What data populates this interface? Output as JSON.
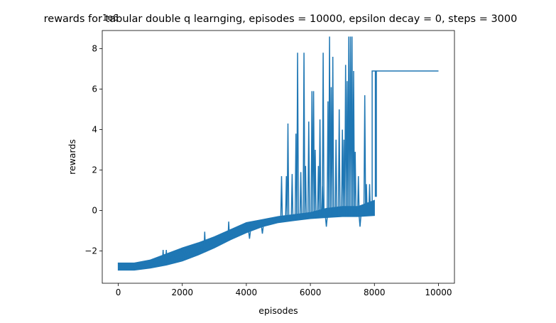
{
  "chart_data": {
    "type": "line",
    "title": "rewards for tabular double q learnging, episodes = 10000, epsilon decay = 0, steps = 3000",
    "xlabel": "episodes",
    "ylabel": "rewards",
    "y_offset_text": "1e6",
    "xlim": [
      -500,
      10500
    ],
    "ylim": [
      -3.6,
      8.9
    ],
    "x_ticks": [
      0,
      2000,
      4000,
      6000,
      8000,
      10000
    ],
    "x_tick_labels": [
      "0",
      "2000",
      "4000",
      "6000",
      "8000",
      "10000"
    ],
    "y_ticks": [
      -2,
      0,
      2,
      4,
      6,
      8
    ],
    "y_tick_labels": [
      "−2",
      "0",
      "2",
      "4",
      "6",
      "8"
    ],
    "grid": false,
    "series": [
      {
        "color": "#1f77b4",
        "band": {
          "x": [
            0,
            500,
            1000,
            1500,
            2000,
            2500,
            3000,
            3500,
            4000,
            4500,
            5000,
            5500,
            6000,
            6500,
            7000,
            7500,
            8000
          ],
          "low": [
            -2.95,
            -2.95,
            -2.85,
            -2.7,
            -2.5,
            -2.2,
            -1.85,
            -1.45,
            -1.1,
            -0.8,
            -0.6,
            -0.5,
            -0.4,
            -0.35,
            -0.3,
            -0.3,
            -0.25
          ],
          "high": [
            -2.6,
            -2.6,
            -2.45,
            -2.15,
            -1.85,
            -1.6,
            -1.3,
            -0.95,
            -0.6,
            -0.45,
            -0.3,
            -0.2,
            -0.1,
            0.1,
            0.2,
            0.2,
            0.5
          ]
        },
        "spikes": [
          {
            "x": 1400,
            "y": -1.95
          },
          {
            "x": 1500,
            "y": -1.95
          },
          {
            "x": 2700,
            "y": -1.05
          },
          {
            "x": 3450,
            "y": -0.55
          },
          {
            "x": 4100,
            "y": -1.4
          },
          {
            "x": 4500,
            "y": -1.15
          },
          {
            "x": 5100,
            "y": 1.7
          },
          {
            "x": 5250,
            "y": 1.7
          },
          {
            "x": 5300,
            "y": 4.3
          },
          {
            "x": 5430,
            "y": 1.8
          },
          {
            "x": 5550,
            "y": 3.8
          },
          {
            "x": 5600,
            "y": 7.8
          },
          {
            "x": 5700,
            "y": 1.9
          },
          {
            "x": 5800,
            "y": 7.8
          },
          {
            "x": 5850,
            "y": 2.2
          },
          {
            "x": 5950,
            "y": 4.4
          },
          {
            "x": 6050,
            "y": 5.9
          },
          {
            "x": 6100,
            "y": 5.9
          },
          {
            "x": 6150,
            "y": 3.0
          },
          {
            "x": 6250,
            "y": 2.2
          },
          {
            "x": 6300,
            "y": 4.5
          },
          {
            "x": 6380,
            "y": 1.2
          },
          {
            "x": 6400,
            "y": 7.8
          },
          {
            "x": 6500,
            "y": -0.8
          },
          {
            "x": 6550,
            "y": 5.4
          },
          {
            "x": 6600,
            "y": 8.6
          },
          {
            "x": 6650,
            "y": 6.1
          },
          {
            "x": 6700,
            "y": 7.6
          },
          {
            "x": 6800,
            "y": 3.5
          },
          {
            "x": 6900,
            "y": 5.0
          },
          {
            "x": 7000,
            "y": 4.0
          },
          {
            "x": 7050,
            "y": 3.5
          },
          {
            "x": 7100,
            "y": 7.2
          },
          {
            "x": 7150,
            "y": 6.4
          },
          {
            "x": 7200,
            "y": 8.6
          },
          {
            "x": 7250,
            "y": 8.6
          },
          {
            "x": 7300,
            "y": 8.6
          },
          {
            "x": 7350,
            "y": 6.9
          },
          {
            "x": 7400,
            "y": 2.9
          },
          {
            "x": 7500,
            "y": 1.7
          },
          {
            "x": 7550,
            "y": -0.8
          },
          {
            "x": 7700,
            "y": 5.7
          },
          {
            "x": 7750,
            "y": 1.3
          },
          {
            "x": 7850,
            "y": 1.3
          }
        ],
        "tail": {
          "x": [
            7930,
            7930,
            8030,
            8030,
            8060,
            8060,
            10000
          ],
          "y": [
            -0.2,
            6.9,
            6.9,
            0.7,
            0.7,
            6.9,
            6.9
          ]
        }
      }
    ]
  }
}
